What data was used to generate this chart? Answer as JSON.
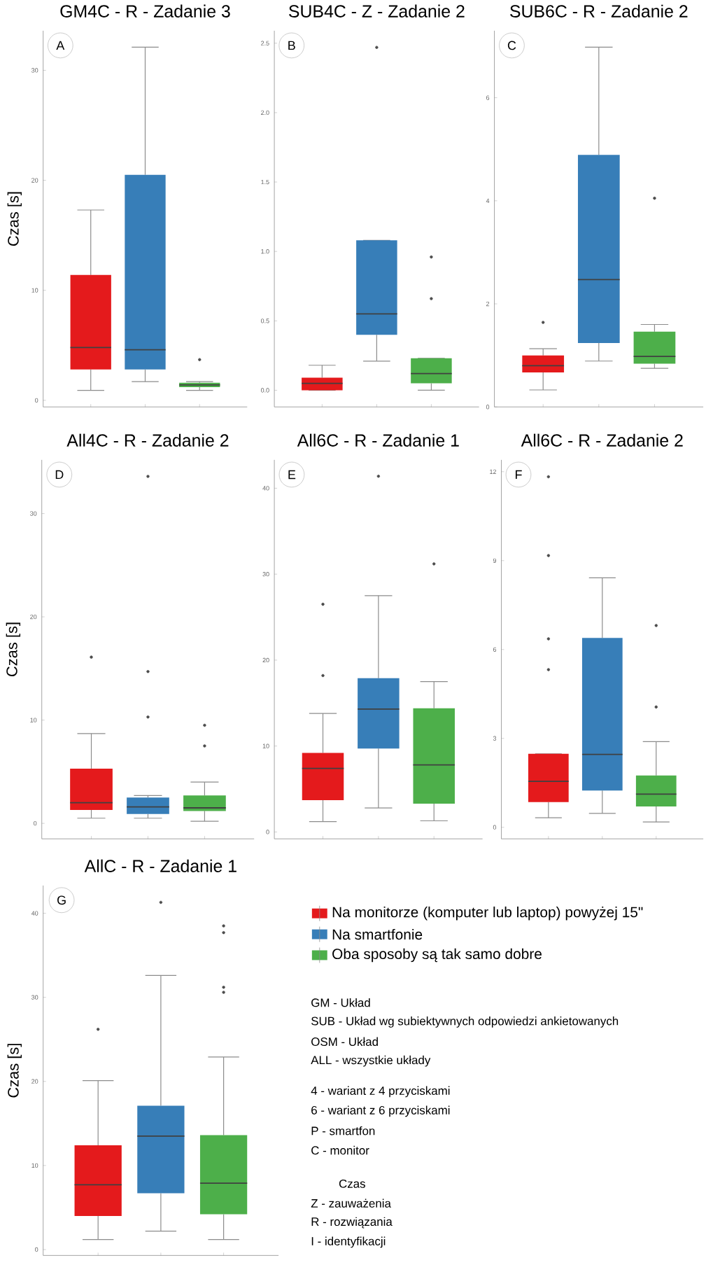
{
  "chart_data": [
    {
      "type": "box",
      "title": "GM4C - R - Zadanie 3",
      "ylabel": "Czas [s]",
      "categories": [
        null
      ],
      "tick_labels": "y",
      "ylim": [
        -0.6,
        33.6
      ],
      "yticks": [
        0,
        10,
        20,
        30
      ],
      "annotations": [
        "A"
      ],
      "series": [
        {
          "color": "#e41a1c",
          "boxes": [
            {
              "low": 0.9,
              "q1": 2.8,
              "median": 4.8,
              "q3": 11.4,
              "high": 17.3
            }
          ]
        },
        {
          "color": "#377eb8",
          "boxes": [
            {
              "low": 1.7,
              "q1": 2.8,
              "median": 4.6,
              "q3": 20.5,
              "high": 32.1
            }
          ]
        },
        {
          "color": "#4daf4a",
          "boxes": [
            {
              "low": 0.9,
              "q1": 1.2,
              "median": 1.4,
              "q3": 1.6,
              "high": 1.7,
              "outliers": [
                3.7
              ]
            }
          ]
        }
      ]
    },
    {
      "type": "box",
      "title": "SUB4C - Z - Zadanie 2",
      "categories": [
        null
      ],
      "tick_labels": "y",
      "ylim": [
        -0.12,
        2.59
      ],
      "yticks": [
        {
          "value": 0,
          "label": "0.0"
        },
        0.5,
        {
          "value": 1,
          "label": "1.0"
        },
        1.5,
        {
          "value": 2,
          "label": "2.0"
        },
        2.5
      ],
      "annotations": [
        "B"
      ],
      "series": [
        {
          "color": "#e41a1c",
          "boxes": [
            {
              "low": 0.0,
              "q1": 0.0,
              "median": 0.05,
              "q3": 0.09,
              "high": 0.18
            }
          ]
        },
        {
          "color": "#377eb8",
          "boxes": [
            {
              "low": 0.21,
              "q1": 0.4,
              "median": 0.55,
              "q3": 1.08,
              "high": 1.08,
              "outliers": [
                2.47
              ]
            }
          ]
        },
        {
          "color": "#4daf4a",
          "boxes": [
            {
              "low": 0.0,
              "q1": 0.05,
              "median": 0.12,
              "q3": 0.23,
              "high": 0.23,
              "outliers": [
                0.96,
                0.66
              ]
            }
          ]
        }
      ]
    },
    {
      "type": "box",
      "title": "SUB6C - R - Zadanie 2",
      "categories": [
        null
      ],
      "tick_labels": "y",
      "ylim": [
        0,
        7.3
      ],
      "yticks": [
        0,
        2,
        4,
        6
      ],
      "annotations": [
        "C"
      ],
      "series": [
        {
          "color": "#e41a1c",
          "boxes": [
            {
              "low": 0.33,
              "q1": 0.67,
              "median": 0.8,
              "q3": 1.0,
              "high": 1.13,
              "outliers": [
                1.64
              ]
            }
          ]
        },
        {
          "color": "#377eb8",
          "boxes": [
            {
              "low": 0.89,
              "q1": 1.24,
              "median": 2.47,
              "q3": 4.89,
              "high": 6.98
            }
          ]
        },
        {
          "color": "#4daf4a",
          "boxes": [
            {
              "low": 0.75,
              "q1": 0.84,
              "median": 0.98,
              "q3": 1.46,
              "high": 1.6,
              "outliers": [
                4.05
              ]
            }
          ]
        }
      ]
    },
    {
      "type": "box",
      "title": "All4C - R - Zadanie 2",
      "ylabel": "Czas [s]",
      "categories": [
        null
      ],
      "tick_labels": "y",
      "ylim": [
        -1.5,
        35.2
      ],
      "yticks": [
        0,
        10,
        20,
        30
      ],
      "annotations": [
        "D"
      ],
      "series": [
        {
          "color": "#e41a1c",
          "boxes": [
            {
              "low": 0.5,
              "q1": 1.3,
              "median": 2.0,
              "q3": 5.3,
              "high": 8.7,
              "outliers": [
                16.1
              ]
            }
          ]
        },
        {
          "color": "#377eb8",
          "boxes": [
            {
              "low": 0.5,
              "q1": 0.9,
              "median": 1.6,
              "q3": 2.5,
              "high": 2.7,
              "outliers": [
                33.6,
                14.7,
                10.3
              ]
            }
          ]
        },
        {
          "color": "#4daf4a",
          "boxes": [
            {
              "low": 0.2,
              "q1": 1.2,
              "median": 1.5,
              "q3": 2.7,
              "high": 4.0,
              "outliers": [
                9.5,
                7.5
              ]
            }
          ]
        }
      ]
    },
    {
      "type": "box",
      "title": "All6C - R - Zadanie 1",
      "categories": [
        null
      ],
      "tick_labels": "y",
      "ylim": [
        -0.8,
        43.3
      ],
      "yticks": [
        0,
        10,
        20,
        30,
        40
      ],
      "annotations": [
        "E"
      ],
      "series": [
        {
          "color": "#e41a1c",
          "boxes": [
            {
              "low": 1.2,
              "q1": 3.7,
              "median": 7.4,
              "q3": 9.2,
              "high": 13.8,
              "outliers": [
                26.5,
                18.2
              ]
            }
          ]
        },
        {
          "color": "#377eb8",
          "boxes": [
            {
              "low": 2.8,
              "q1": 9.7,
              "median": 14.3,
              "q3": 17.9,
              "high": 27.5,
              "outliers": [
                41.4
              ]
            }
          ]
        },
        {
          "color": "#4daf4a",
          "boxes": [
            {
              "low": 1.3,
              "q1": 3.3,
              "median": 7.8,
              "q3": 14.4,
              "high": 17.5,
              "outliers": [
                31.2
              ]
            }
          ]
        }
      ]
    },
    {
      "type": "box",
      "title": "All6C - R - Zadanie 2",
      "categories": [
        null
      ],
      "tick_labels": "y",
      "ylim": [
        -0.39,
        12.4
      ],
      "yticks": [
        0,
        3,
        6,
        9,
        12
      ],
      "annotations": [
        "F"
      ],
      "series": [
        {
          "color": "#e41a1c",
          "boxes": [
            {
              "low": 0.32,
              "q1": 0.85,
              "median": 1.55,
              "q3": 2.48,
              "high": 2.48,
              "outliers": [
                11.83,
                9.17,
                6.36,
                5.32
              ]
            }
          ]
        },
        {
          "color": "#377eb8",
          "boxes": [
            {
              "low": 0.47,
              "q1": 1.24,
              "median": 2.46,
              "q3": 6.39,
              "high": 8.42
            }
          ]
        },
        {
          "color": "#4daf4a",
          "boxes": [
            {
              "low": 0.18,
              "q1": 0.7,
              "median": 1.12,
              "q3": 1.75,
              "high": 2.89,
              "outliers": [
                6.81,
                4.06
              ]
            }
          ]
        }
      ]
    },
    {
      "type": "box",
      "title": "AllC - R - Zadanie 1",
      "ylabel": "Czas [s]",
      "categories": [
        null
      ],
      "tick_labels": "y",
      "ylim": [
        -0.7,
        43.3
      ],
      "yticks": [
        0,
        10,
        20,
        30,
        40
      ],
      "legend": "right",
      "annotations": [
        "G",
        "GM - Układ",
        "SUB - Układ wg subiektywnych odpowiedzi ankietowanych",
        "OSM - Układ",
        "ALL - wszystkie układy",
        "4 - wariant z 4 przyciskami",
        "6 - wariant z 6 przyciskami",
        "P - smartfon",
        "C - monitor",
        "Czas",
        "Z - zauważenia",
        "R - rozwiązania",
        "I - identyfikacji"
      ],
      "series": [
        {
          "name": "Na monitorze (komputer lub laptop) powyżej 15\"",
          "color": "#e41a1c",
          "boxes": [
            {
              "low": 1.2,
              "q1": 4.0,
              "median": 7.7,
              "q3": 12.4,
              "high": 20.1,
              "outliers": [
                26.2
              ]
            }
          ]
        },
        {
          "name": "Na smartfonie",
          "color": "#377eb8",
          "boxes": [
            {
              "low": 2.2,
              "q1": 6.7,
              "median": 13.5,
              "q3": 17.1,
              "high": 32.6,
              "outliers": [
                41.3
              ]
            }
          ]
        },
        {
          "name": "Oba sposoby są tak samo dobre",
          "color": "#4daf4a",
          "boxes": [
            {
              "low": 1.2,
              "q1": 4.2,
              "median": 7.9,
              "q3": 13.6,
              "high": 22.9,
              "outliers": [
                38.5,
                37.7,
                31.2,
                30.6
              ]
            }
          ]
        }
      ]
    }
  ]
}
